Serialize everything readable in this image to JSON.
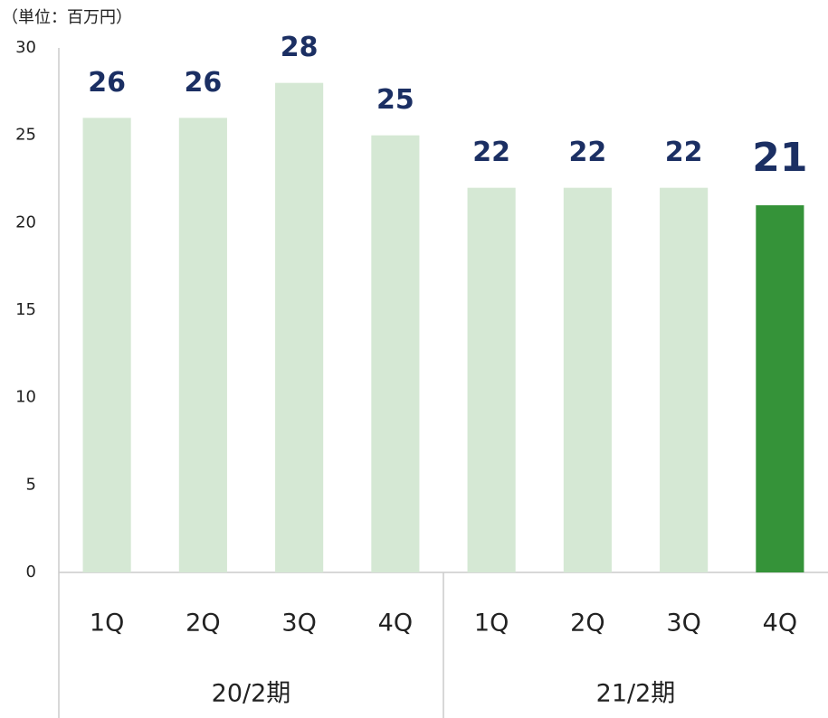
{
  "chart_data": {
    "type": "bar",
    "unit_label": "（単位：百万円）",
    "categories": [
      "1Q",
      "2Q",
      "3Q",
      "4Q",
      "1Q",
      "2Q",
      "3Q",
      "4Q"
    ],
    "group_labels": [
      "20/2期",
      "21/2期"
    ],
    "values": [
      26,
      26,
      28,
      25,
      22,
      22,
      22,
      21
    ],
    "colors": [
      "#d5e8d4",
      "#d5e8d4",
      "#d5e8d4",
      "#d5e8d4",
      "#d5e8d4",
      "#d5e8d4",
      "#d5e8d4",
      "#359339"
    ],
    "ylim": [
      0,
      30
    ],
    "yticks": [
      0,
      5,
      10,
      15,
      20,
      25,
      30
    ],
    "grid": false
  }
}
